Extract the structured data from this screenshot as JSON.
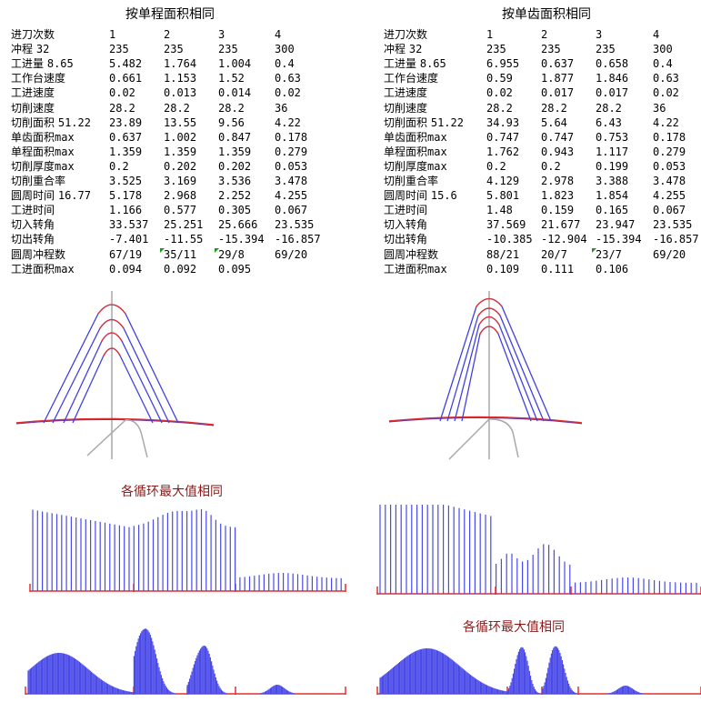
{
  "colors": {
    "blue": "#4040e0",
    "red": "#e03030",
    "gray": "#a8a8a8",
    "bar": "#4a4ae8",
    "caption": "#8b1a1a",
    "flag": "#1a9a1a"
  },
  "left": {
    "title": "按单程面积相同",
    "header": "进刀次数",
    "passes": [
      "1",
      "2",
      "3",
      "4"
    ],
    "rows": [
      {
        "label": "冲程",
        "param": "32",
        "values": [
          "235",
          "235",
          "235",
          "300"
        ]
      },
      {
        "label": "工进量",
        "param": "8.65",
        "values": [
          "5.482",
          "1.764",
          "1.004",
          "0.4"
        ]
      },
      {
        "label": "工作台速度",
        "param": "",
        "values": [
          "0.661",
          "1.153",
          "1.52",
          "0.63"
        ]
      },
      {
        "label": "工进速度",
        "param": "",
        "values": [
          "0.02",
          "0.013",
          "0.014",
          "0.02"
        ]
      },
      {
        "label": "切削速度",
        "param": "",
        "values": [
          "28.2",
          "28.2",
          "28.2",
          "36"
        ]
      },
      {
        "label": "切削面积",
        "param": "51.22",
        "values": [
          "23.89",
          "13.55",
          "9.56",
          "4.22"
        ]
      },
      {
        "label": "单齿面积",
        "sub": "max",
        "param": "",
        "values": [
          "0.637",
          "1.002",
          "0.847",
          "0.178"
        ]
      },
      {
        "label": "单程面积",
        "sub": "max",
        "param": "",
        "values": [
          "1.359",
          "1.359",
          "1.359",
          "0.279"
        ]
      },
      {
        "label": "切削厚度",
        "sub": "max",
        "param": "",
        "values": [
          "0.2",
          "0.202",
          "0.202",
          "0.053"
        ]
      },
      {
        "label": "切削重合率",
        "param": "",
        "values": [
          "3.525",
          "3.169",
          "3.536",
          "3.478"
        ]
      },
      {
        "label": "圆周时间",
        "param": "16.77",
        "values": [
          "5.178",
          "2.968",
          "2.252",
          "4.255"
        ]
      },
      {
        "label": "工进时间",
        "param": "",
        "values": [
          "1.166",
          "0.577",
          "0.305",
          "0.067"
        ]
      },
      {
        "label": "切入转角",
        "param": "",
        "values": [
          "33.537",
          "25.251",
          "25.666",
          "23.535"
        ]
      },
      {
        "label": "切出转角",
        "param": "",
        "values": [
          "-7.401",
          "-11.55",
          "-15.394",
          "-16.857"
        ]
      },
      {
        "label": "圆周冲程数",
        "param": "",
        "values": [
          "67/19",
          "35/11",
          "29/8",
          "69/20"
        ],
        "flags": [
          false,
          true,
          true,
          false
        ]
      },
      {
        "label": "工进面积",
        "sub": "max",
        "param": "",
        "values": [
          "0.094",
          "0.092",
          "0.095",
          ""
        ]
      }
    ],
    "caption": "各循环最大值相同"
  },
  "right": {
    "title": "按单齿面积相同",
    "header": "进刀次数",
    "passes": [
      "1",
      "2",
      "3",
      "4"
    ],
    "rows": [
      {
        "label": "冲程",
        "param": "32",
        "values": [
          "235",
          "235",
          "235",
          "300"
        ]
      },
      {
        "label": "工进量",
        "param": "8.65",
        "values": [
          "6.955",
          "0.637",
          "0.658",
          "0.4"
        ]
      },
      {
        "label": "工作台速度",
        "param": "",
        "values": [
          "0.59",
          "1.877",
          "1.846",
          "0.63"
        ]
      },
      {
        "label": "工进速度",
        "param": "",
        "values": [
          "0.02",
          "0.017",
          "0.017",
          "0.02"
        ]
      },
      {
        "label": "切削速度",
        "param": "",
        "values": [
          "28.2",
          "28.2",
          "28.2",
          "36"
        ]
      },
      {
        "label": "切削面积",
        "param": "51.22",
        "values": [
          "34.93",
          "5.64",
          "6.43",
          "4.22"
        ]
      },
      {
        "label": "单齿面积",
        "sub": "max",
        "param": "",
        "values": [
          "0.747",
          "0.747",
          "0.753",
          "0.178"
        ]
      },
      {
        "label": "单程面积",
        "sub": "max",
        "param": "",
        "values": [
          "1.762",
          "0.943",
          "1.117",
          "0.279"
        ]
      },
      {
        "label": "切削厚度",
        "sub": "max",
        "param": "",
        "values": [
          "0.2",
          "0.2",
          "0.199",
          "0.053"
        ]
      },
      {
        "label": "切削重合率",
        "param": "",
        "values": [
          "4.129",
          "2.978",
          "3.388",
          "3.478"
        ]
      },
      {
        "label": "圆周时间",
        "param": "15.6",
        "values": [
          "5.801",
          "1.823",
          "1.854",
          "4.255"
        ]
      },
      {
        "label": "工进时间",
        "param": "",
        "values": [
          "1.48",
          "0.159",
          "0.165",
          "0.067"
        ]
      },
      {
        "label": "切入转角",
        "param": "",
        "values": [
          "37.569",
          "21.677",
          "23.947",
          "23.535"
        ]
      },
      {
        "label": "切出转角",
        "param": "",
        "values": [
          "-10.385",
          "-12.904",
          "-15.394",
          "-16.857"
        ]
      },
      {
        "label": "圆周冲程数",
        "param": "",
        "values": [
          "88/21",
          "20/7",
          "23/7",
          "69/20"
        ],
        "flags": [
          false,
          false,
          true,
          false
        ]
      },
      {
        "label": "工进面积",
        "sub": "max",
        "param": "",
        "values": [
          "0.109",
          "0.111",
          "0.106",
          ""
        ]
      }
    ],
    "caption": "各循环最大值相同"
  }
}
